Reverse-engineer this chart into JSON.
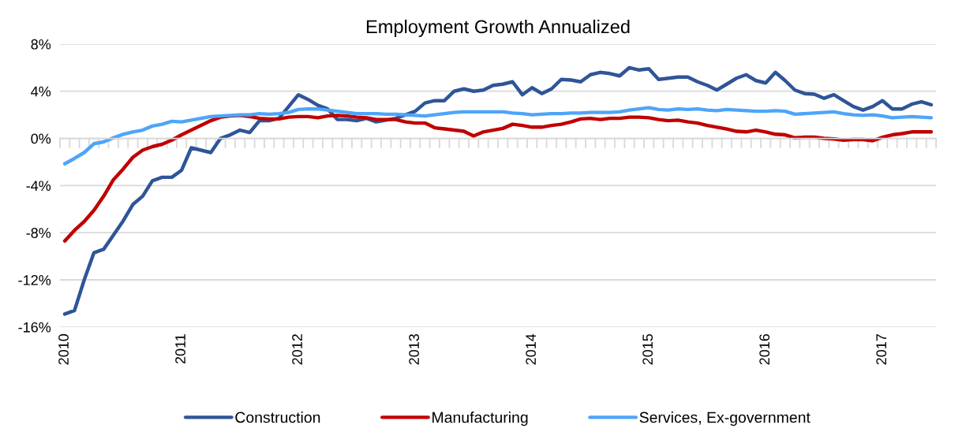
{
  "chart_data": {
    "type": "line",
    "title": "Employment Growth Annualized",
    "categories": [
      "2010",
      null,
      null,
      null,
      null,
      null,
      null,
      null,
      null,
      null,
      null,
      null,
      "2011",
      null,
      null,
      null,
      null,
      null,
      null,
      null,
      null,
      null,
      null,
      null,
      "2012",
      null,
      null,
      null,
      null,
      null,
      null,
      null,
      null,
      null,
      null,
      null,
      "2013",
      null,
      null,
      null,
      null,
      null,
      null,
      null,
      null,
      null,
      null,
      null,
      "2014",
      null,
      null,
      null,
      null,
      null,
      null,
      null,
      null,
      null,
      null,
      null,
      "2015",
      null,
      null,
      null,
      null,
      null,
      null,
      null,
      null,
      null,
      null,
      null,
      "2016",
      null,
      null,
      null,
      null,
      null,
      null,
      null,
      null,
      null,
      null,
      null,
      "2017",
      null,
      null,
      null,
      null,
      null
    ],
    "series": [
      {
        "name": "Construction",
        "color": "#2f5597",
        "values": [
          -14.9,
          -14.6,
          -12.0,
          -9.7,
          -9.4,
          -8.2,
          -7.0,
          -5.6,
          -4.9,
          -3.6,
          -3.3,
          -3.3,
          -2.7,
          -0.8,
          -1.0,
          -1.2,
          0.0,
          0.3,
          0.7,
          0.5,
          1.5,
          1.5,
          1.7,
          2.7,
          3.7,
          3.3,
          2.8,
          2.5,
          1.6,
          1.6,
          1.5,
          1.7,
          1.4,
          1.55,
          1.7,
          2.0,
          2.3,
          3.0,
          3.2,
          3.2,
          4.0,
          4.2,
          4.0,
          4.1,
          4.5,
          4.6,
          4.8,
          3.7,
          4.3,
          3.8,
          4.2,
          5.0,
          4.95,
          4.8,
          5.4,
          5.6,
          5.5,
          5.3,
          6.0,
          5.8,
          5.9,
          5.0,
          5.1,
          5.2,
          5.2,
          4.8,
          4.5,
          4.1,
          4.6,
          5.1,
          5.4,
          4.9,
          4.7,
          5.6,
          4.9,
          4.1,
          3.8,
          3.75,
          3.4,
          3.7,
          3.2,
          2.7,
          2.4,
          2.7,
          3.2,
          2.5,
          2.5,
          2.9,
          3.1,
          2.85
        ]
      },
      {
        "name": "Manufacturing",
        "color": "#c00000",
        "values": [
          -8.7,
          -7.8,
          -7.05,
          -6.1,
          -4.9,
          -3.5,
          -2.6,
          -1.6,
          -1.0,
          -0.7,
          -0.5,
          -0.15,
          0.3,
          0.7,
          1.1,
          1.5,
          1.8,
          1.9,
          1.95,
          1.85,
          1.7,
          1.65,
          1.65,
          1.8,
          1.85,
          1.85,
          1.75,
          1.9,
          1.95,
          1.9,
          1.8,
          1.75,
          1.6,
          1.6,
          1.6,
          1.4,
          1.3,
          1.3,
          0.9,
          0.8,
          0.7,
          0.6,
          0.2,
          0.55,
          0.7,
          0.85,
          1.2,
          1.1,
          0.95,
          0.95,
          1.1,
          1.2,
          1.4,
          1.65,
          1.7,
          1.6,
          1.7,
          1.7,
          1.8,
          1.8,
          1.75,
          1.6,
          1.5,
          1.55,
          1.4,
          1.3,
          1.1,
          0.95,
          0.8,
          0.6,
          0.55,
          0.7,
          0.55,
          0.35,
          0.3,
          0.05,
          0.1,
          0.1,
          0.0,
          -0.05,
          -0.15,
          -0.1,
          -0.1,
          -0.2,
          0.1,
          0.3,
          0.4,
          0.55,
          0.55,
          0.55
        ]
      },
      {
        "name": "Services, Ex-government",
        "color": "#4ea5f8",
        "values": [
          -2.15,
          -1.7,
          -1.2,
          -0.45,
          -0.3,
          0.05,
          0.35,
          0.55,
          0.7,
          1.05,
          1.2,
          1.45,
          1.4,
          1.55,
          1.7,
          1.85,
          1.9,
          1.95,
          2.0,
          2.0,
          2.1,
          2.05,
          2.1,
          2.2,
          2.45,
          2.5,
          2.5,
          2.4,
          2.3,
          2.2,
          2.1,
          2.1,
          2.1,
          2.05,
          2.05,
          2.0,
          1.95,
          1.9,
          2.0,
          2.1,
          2.2,
          2.25,
          2.25,
          2.25,
          2.25,
          2.25,
          2.15,
          2.1,
          2.0,
          2.05,
          2.1,
          2.1,
          2.15,
          2.15,
          2.2,
          2.2,
          2.2,
          2.25,
          2.4,
          2.5,
          2.6,
          2.45,
          2.4,
          2.5,
          2.45,
          2.5,
          2.4,
          2.35,
          2.45,
          2.4,
          2.35,
          2.3,
          2.3,
          2.35,
          2.3,
          2.05,
          2.1,
          2.15,
          2.2,
          2.25,
          2.1,
          2.0,
          1.95,
          2.0,
          1.9,
          1.75,
          1.8,
          1.85,
          1.8,
          1.75
        ]
      }
    ],
    "ylim": [
      -16,
      8
    ],
    "yticks": [
      {
        "value": -16,
        "label": "-16%"
      },
      {
        "value": -12,
        "label": "-12%"
      },
      {
        "value": -8,
        "label": "-8%"
      },
      {
        "value": -4,
        "label": "-4%"
      },
      {
        "value": 0,
        "label": "0%"
      },
      {
        "value": 4,
        "label": "4%"
      },
      {
        "value": 8,
        "label": "8%"
      }
    ],
    "grid": "y",
    "legend": "bottom",
    "line_style": "solid",
    "marker": "none"
  }
}
